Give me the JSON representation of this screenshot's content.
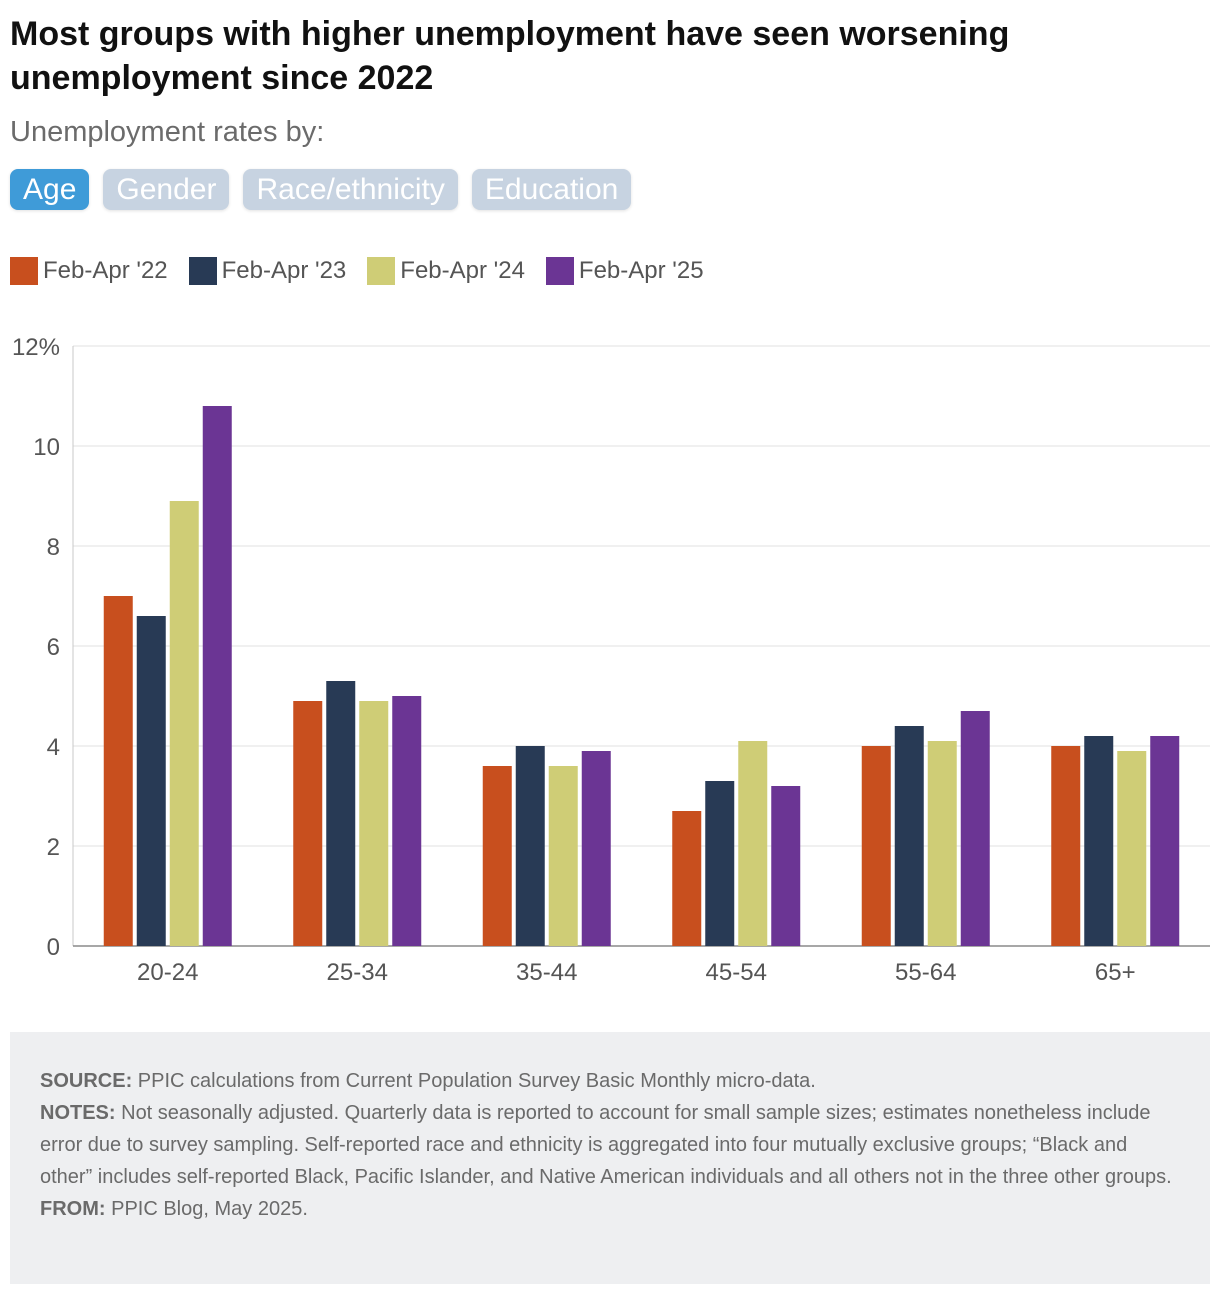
{
  "title": "Most groups with higher unemployment have seen worsening unemployment since 2022",
  "subtitle": "Unemployment rates by:",
  "tabs": [
    {
      "label": "Age",
      "active": true
    },
    {
      "label": "Gender",
      "active": false
    },
    {
      "label": "Race/ethnicity",
      "active": false
    },
    {
      "label": "Education",
      "active": false
    }
  ],
  "chart_data": {
    "type": "bar",
    "categories": [
      "20-24",
      "25-34",
      "35-44",
      "45-54",
      "55-64",
      "65+"
    ],
    "series": [
      {
        "name": "Feb-Apr '22",
        "color": "#c84f1e",
        "values": [
          7.0,
          4.9,
          3.6,
          2.7,
          4.0,
          4.0
        ]
      },
      {
        "name": "Feb-Apr '23",
        "color": "#283a55",
        "values": [
          6.6,
          5.3,
          4.0,
          3.3,
          4.4,
          4.2
        ]
      },
      {
        "name": "Feb-Apr '24",
        "color": "#cfcd76",
        "values": [
          8.9,
          4.9,
          3.6,
          4.1,
          4.1,
          3.9
        ]
      },
      {
        "name": "Feb-Apr '25",
        "color": "#6b3594",
        "values": [
          10.8,
          5.0,
          3.9,
          3.2,
          4.7,
          4.2
        ]
      }
    ],
    "yticks": [
      0,
      2,
      4,
      6,
      8,
      10
    ],
    "ytick_top_label": "12%",
    "ylim": [
      0,
      12
    ],
    "xlabel": "",
    "ylabel": "",
    "grid": true,
    "legend": "top-left"
  },
  "notes": {
    "source_label": "SOURCE:",
    "source_text": " PPIC calculations from Current Population Survey Basic Monthly micro-data.",
    "notes_label": "NOTES:",
    "notes_text": " Not seasonally adjusted. Quarterly data is reported to account for small sample sizes; estimates nonetheless include error due to survey sampling. Self-reported race and ethnicity is aggregated into four mutually exclusive groups; “Black and other” includes self-reported Black, Pacific Islander, and Native American individuals and all others not in the three other groups.",
    "from_label": "FROM:",
    "from_text": " PPIC Blog, May 2025."
  }
}
